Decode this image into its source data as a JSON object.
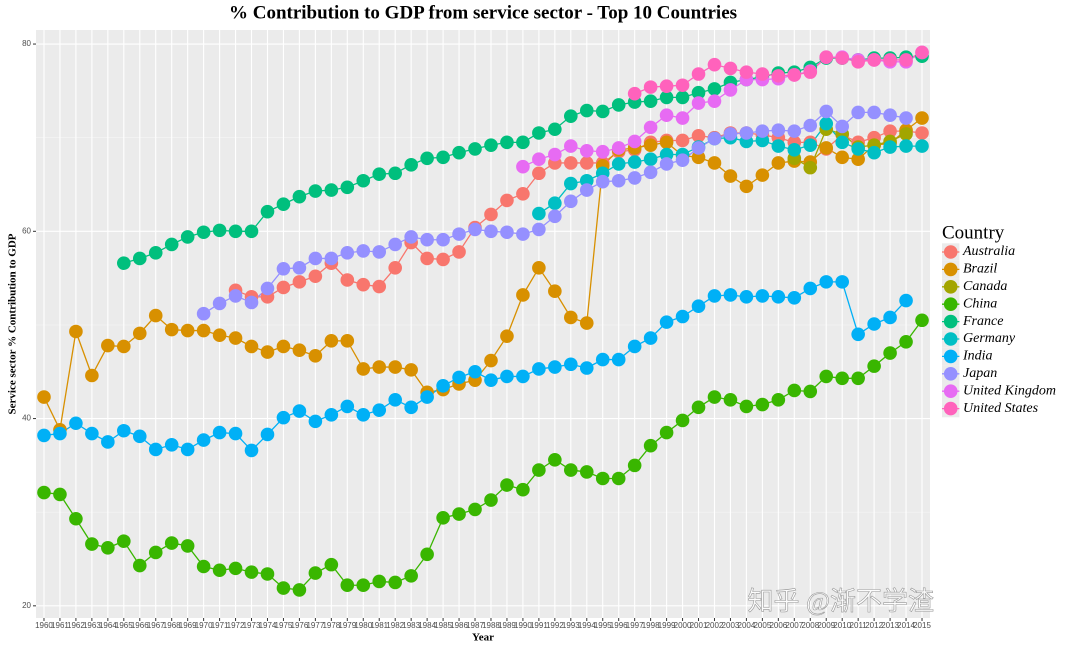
{
  "chart_data": {
    "type": "line",
    "title": "% Contribution to GDP from service sector - Top 10 Countries",
    "x_label": "Year",
    "y_label": "Service sector % Contribution to GDP",
    "legend_title": "Country",
    "legend_position": "right",
    "watermark": "知乎 @渐不学渣",
    "x": [
      1960,
      1961,
      1962,
      1963,
      1964,
      1965,
      1966,
      1967,
      1968,
      1969,
      1970,
      1971,
      1972,
      1973,
      1974,
      1975,
      1976,
      1977,
      1978,
      1979,
      1980,
      1981,
      1982,
      1983,
      1984,
      1985,
      1986,
      1987,
      1988,
      1989,
      1990,
      1991,
      1992,
      1993,
      1994,
      1995,
      1996,
      1997,
      1998,
      1999,
      2000,
      2001,
      2002,
      2003,
      2004,
      2005,
      2006,
      2007,
      2008,
      2009,
      2010,
      2011,
      2012,
      2013,
      2014,
      2015
    ],
    "xlim": [
      1959.5,
      2015.5
    ],
    "xticks": [
      1960,
      1961,
      1962,
      1963,
      1964,
      1965,
      1966,
      1967,
      1968,
      1969,
      1970,
      1971,
      1972,
      1973,
      1974,
      1975,
      1976,
      1977,
      1978,
      1979,
      1980,
      1981,
      1982,
      1983,
      1984,
      1985,
      1986,
      1987,
      1988,
      1989,
      1990,
      1991,
      1992,
      1993,
      1994,
      1995,
      1996,
      1997,
      1998,
      1999,
      2000,
      2001,
      2002,
      2003,
      2004,
      2005,
      2006,
      2007,
      2008,
      2009,
      2010,
      2011,
      2012,
      2013,
      2014,
      2015
    ],
    "ylim": [
      18.7,
      81.5
    ],
    "yticks": [
      20,
      40,
      60,
      80
    ],
    "grid": true,
    "series": [
      {
        "name": "Australia",
        "color": "#F8766D",
        "values": [
          null,
          null,
          null,
          null,
          null,
          null,
          null,
          null,
          null,
          null,
          null,
          null,
          53.7,
          53.0,
          53.0,
          54.0,
          54.6,
          55.2,
          56.6,
          54.8,
          54.3,
          54.1,
          56.1,
          58.8,
          57.1,
          57.0,
          57.8,
          60.4,
          61.8,
          63.3,
          64.0,
          66.2,
          67.3,
          67.3,
          67.3,
          67.3,
          68.5,
          68.7,
          69.5,
          69.7,
          69.7,
          70.2,
          70.0,
          70.5,
          70.5,
          70.3,
          70.0,
          69.5,
          69.5,
          68.8,
          70.3,
          69.5,
          70.0,
          70.7,
          70.7,
          70.5
        ]
      },
      {
        "name": "Brazil",
        "color": "#D89000",
        "values": [
          42.3,
          38.8,
          49.3,
          44.6,
          47.8,
          47.7,
          49.1,
          51.0,
          49.5,
          49.4,
          49.4,
          48.9,
          48.6,
          47.7,
          47.1,
          47.7,
          47.3,
          46.7,
          48.3,
          48.3,
          45.3,
          45.5,
          45.5,
          45.2,
          42.8,
          43.1,
          43.7,
          44.1,
          46.2,
          48.8,
          53.2,
          56.1,
          53.6,
          50.8,
          50.2,
          67.0,
          68.7,
          68.9,
          69.2,
          69.5,
          68.1,
          67.9,
          67.3,
          65.9,
          64.8,
          66.0,
          67.3,
          67.5,
          67.4,
          68.9,
          67.9,
          67.7,
          69.2,
          69.4,
          70.8,
          72.1
        ]
      },
      {
        "name": "Canada",
        "color": "#A3A500",
        "values": [
          null,
          null,
          null,
          null,
          null,
          null,
          null,
          null,
          null,
          null,
          null,
          null,
          null,
          null,
          null,
          null,
          null,
          null,
          null,
          null,
          null,
          null,
          null,
          null,
          null,
          null,
          null,
          null,
          null,
          null,
          null,
          null,
          null,
          null,
          null,
          null,
          null,
          null,
          null,
          null,
          null,
          null,
          null,
          null,
          null,
          null,
          null,
          67.8,
          66.8,
          70.9,
          70.4,
          69.0,
          69.2,
          69.6,
          70.4,
          null
        ]
      },
      {
        "name": "China",
        "color": "#39B600",
        "values": [
          32.1,
          31.9,
          29.3,
          26.6,
          26.2,
          26.9,
          24.3,
          25.7,
          26.7,
          26.4,
          24.2,
          23.8,
          24.0,
          23.6,
          23.4,
          21.9,
          21.7,
          23.5,
          24.4,
          22.2,
          22.2,
          22.6,
          22.5,
          23.2,
          25.5,
          29.4,
          29.8,
          30.3,
          31.3,
          32.9,
          32.4,
          34.5,
          35.6,
          34.5,
          34.3,
          33.6,
          33.6,
          35.0,
          37.1,
          38.5,
          39.8,
          41.2,
          42.3,
          42.0,
          41.3,
          41.5,
          42.0,
          43.0,
          42.9,
          44.5,
          44.3,
          44.3,
          45.6,
          47.0,
          48.2,
          50.5
        ]
      },
      {
        "name": "France",
        "color": "#00BF7D",
        "values": [
          null,
          null,
          null,
          null,
          null,
          56.6,
          57.1,
          57.7,
          58.6,
          59.4,
          59.9,
          60.1,
          60.0,
          60.0,
          62.1,
          62.9,
          63.7,
          64.3,
          64.4,
          64.7,
          65.4,
          66.1,
          66.2,
          67.1,
          67.8,
          67.9,
          68.4,
          68.8,
          69.2,
          69.5,
          69.5,
          70.5,
          70.9,
          72.3,
          72.9,
          72.8,
          73.5,
          73.8,
          73.9,
          74.3,
          74.3,
          74.8,
          75.2,
          75.9,
          76.2,
          76.5,
          76.9,
          77.0,
          77.5,
          78.5,
          78.5,
          78.3,
          78.5,
          78.5,
          78.6,
          78.7
        ]
      },
      {
        "name": "Germany",
        "color": "#00BFC4",
        "values": [
          null,
          null,
          null,
          null,
          null,
          null,
          null,
          null,
          null,
          null,
          null,
          null,
          null,
          null,
          null,
          null,
          null,
          null,
          null,
          null,
          null,
          null,
          null,
          null,
          null,
          null,
          null,
          null,
          null,
          null,
          null,
          61.9,
          63.0,
          65.1,
          65.4,
          66.2,
          67.2,
          67.4,
          67.7,
          68.2,
          68.2,
          69.0,
          69.9,
          70.0,
          69.6,
          69.7,
          69.1,
          68.7,
          69.2,
          71.5,
          69.5,
          68.8,
          68.4,
          69.0,
          69.1,
          69.1
        ]
      },
      {
        "name": "India",
        "color": "#00B0F6",
        "values": [
          38.2,
          38.4,
          39.5,
          38.4,
          37.5,
          38.7,
          38.1,
          36.7,
          37.2,
          36.7,
          37.7,
          38.5,
          38.4,
          36.6,
          38.3,
          40.1,
          40.8,
          39.7,
          40.4,
          41.3,
          40.4,
          40.9,
          42.0,
          41.2,
          42.3,
          43.5,
          44.4,
          45.0,
          44.1,
          44.5,
          44.5,
          45.3,
          45.5,
          45.8,
          45.4,
          46.3,
          46.3,
          47.7,
          48.6,
          50.3,
          50.9,
          52.0,
          53.1,
          53.2,
          53.0,
          53.1,
          53.0,
          52.9,
          53.9,
          54.6,
          54.6,
          49.0,
          50.1,
          50.8,
          52.6,
          null
        ]
      },
      {
        "name": "Japan",
        "color": "#9590FF",
        "values": [
          null,
          null,
          null,
          null,
          null,
          null,
          null,
          null,
          null,
          null,
          51.2,
          52.3,
          53.1,
          52.4,
          53.9,
          56.0,
          56.1,
          57.1,
          57.1,
          57.7,
          57.9,
          57.8,
          58.6,
          59.4,
          59.1,
          59.1,
          59.7,
          60.2,
          60.0,
          59.9,
          59.7,
          60.2,
          61.6,
          63.2,
          64.4,
          65.3,
          65.4,
          65.7,
          66.3,
          67.2,
          67.6,
          68.9,
          69.9,
          70.4,
          70.5,
          70.7,
          70.8,
          70.7,
          71.3,
          72.8,
          71.2,
          72.7,
          72.7,
          72.4,
          72.1,
          null
        ]
      },
      {
        "name": "United Kingdom",
        "color": "#E76BF3",
        "values": [
          null,
          null,
          null,
          null,
          null,
          null,
          null,
          null,
          null,
          null,
          null,
          null,
          null,
          null,
          null,
          null,
          null,
          null,
          null,
          null,
          null,
          null,
          null,
          null,
          null,
          null,
          null,
          null,
          null,
          null,
          66.9,
          67.7,
          68.2,
          69.1,
          68.6,
          68.5,
          68.9,
          69.6,
          71.1,
          72.4,
          72.1,
          73.7,
          73.9,
          75.1,
          76.2,
          76.2,
          76.3,
          76.7,
          77.1,
          78.6,
          78.6,
          78.3,
          78.3,
          78.1,
          78.1,
          79.1
        ]
      },
      {
        "name": "United States",
        "color": "#FF62BC",
        "values": [
          null,
          null,
          null,
          null,
          null,
          null,
          null,
          null,
          null,
          null,
          null,
          null,
          null,
          null,
          null,
          null,
          null,
          null,
          null,
          null,
          null,
          null,
          null,
          null,
          null,
          null,
          null,
          null,
          null,
          null,
          null,
          null,
          null,
          null,
          null,
          null,
          null,
          74.7,
          75.4,
          75.5,
          75.6,
          76.8,
          77.8,
          77.4,
          77.0,
          76.8,
          76.6,
          76.7,
          77.0,
          78.6,
          78.5,
          78.1,
          78.3,
          78.3,
          78.3,
          79.1
        ]
      }
    ]
  }
}
